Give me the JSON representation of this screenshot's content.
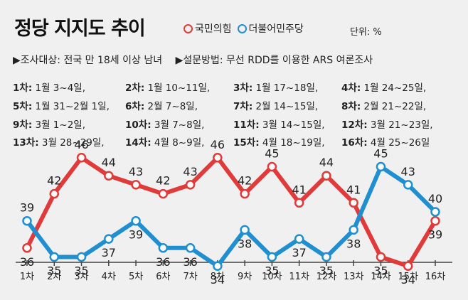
{
  "header": {
    "title": "정당 지지도 추이",
    "unit": "단위: %",
    "survey_target": "▶조사대상: 전국 만 18세 이상 남녀",
    "survey_method": "▶설문방법: 무선 RDD를 이용한 ARS 여론조사"
  },
  "schedule": [
    {
      "round": "1차:",
      "dates": "1월 3~4일,"
    },
    {
      "round": "2차:",
      "dates": "1월 10~11일,"
    },
    {
      "round": "3차:",
      "dates": "1월 17~18일,"
    },
    {
      "round": "4차:",
      "dates": "1월 24~25일,"
    },
    {
      "round": "5차:",
      "dates": "1월 31~2월 1일,"
    },
    {
      "round": "6차:",
      "dates": "2월 7~8일,"
    },
    {
      "round": "7차:",
      "dates": "2월 14~15일,"
    },
    {
      "round": "8차:",
      "dates": "2월 21~22일,"
    },
    {
      "round": "9차:",
      "dates": "3월 1~2일,"
    },
    {
      "round": "10차:",
      "dates": "3월 7~8일,"
    },
    {
      "round": "11차:",
      "dates": "3월 14~15일,"
    },
    {
      "round": "12차:",
      "dates": "3월 21~23일,"
    },
    {
      "round": "13차:",
      "dates": "3월 28~29일,"
    },
    {
      "round": "14차:",
      "dates": "4월 8~9일,"
    },
    {
      "round": "15차:",
      "dates": "4월 18~19일,"
    },
    {
      "round": "16차:",
      "dates": "4월 25~26일"
    }
  ],
  "colors": {
    "red": "#e03a3a",
    "blue": "#1f8fd0",
    "axis": "#444444"
  },
  "chart_data": {
    "type": "line",
    "title": "정당 지지도 추이",
    "categories": [
      "1차",
      "2차",
      "3차",
      "4차",
      "5차",
      "6차",
      "7차",
      "8차",
      "9차",
      "10차",
      "11차",
      "12차",
      "13차",
      "14차",
      "15차",
      "16차"
    ],
    "series": [
      {
        "name": "국민의힘",
        "color": "#e03a3a",
        "values": [
          36,
          42,
          46,
          44,
          43,
          42,
          43,
          46,
          42,
          45,
          41,
          44,
          41,
          35,
          34,
          39
        ]
      },
      {
        "name": "더불어민주당",
        "color": "#1f8fd0",
        "values": [
          39,
          35,
          35,
          37,
          39,
          36,
          36,
          34,
          38,
          35,
          37,
          35,
          38,
          45,
          43,
          40
        ]
      }
    ],
    "legend_position": "top"
  }
}
